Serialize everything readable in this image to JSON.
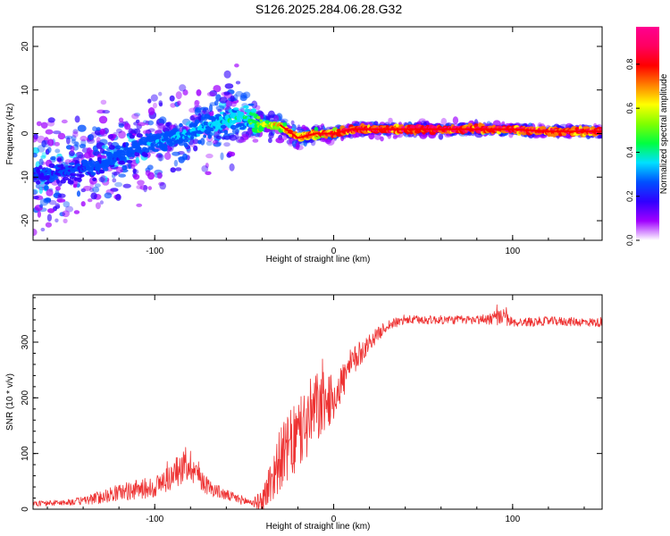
{
  "title": "S126.2025.284.06.28.G32",
  "chart_data": [
    {
      "type": "heatmap",
      "xlabel": "Height of straight line (km)",
      "ylabel": "Frequency (Hz)",
      "xlim": [
        -168,
        150
      ],
      "ylim": [
        -24.5,
        24.5
      ],
      "xticks": [
        -100,
        0,
        100
      ],
      "xtick_labels": [
        "-100",
        "0",
        "100"
      ],
      "yticks": [
        -20,
        -10,
        0,
        10,
        20
      ],
      "ytick_labels": [
        "-20",
        "-10",
        "0",
        "10",
        "20"
      ],
      "colorbar": {
        "label": "Normalized spectral amplitude",
        "range": [
          0,
          0.97
        ],
        "ticks": [
          0.0,
          0.2,
          0.4,
          0.6,
          0.8
        ],
        "tick_labels": [
          "0.0",
          "0.2",
          "0.4",
          "0.6",
          "0.8"
        ],
        "colors": [
          "#ffffff",
          "#a000ff",
          "#3000ff",
          "#0050ff",
          "#00e0ff",
          "#00ff40",
          "#80ff00",
          "#ffff00",
          "#ff8000",
          "#ff0000",
          "#ff0060",
          "#ff0090"
        ]
      },
      "ridge": {
        "x": [
          -150,
          -130,
          -110,
          -90,
          -70,
          -50,
          -40,
          -30,
          -20,
          -10,
          0,
          10,
          20,
          50,
          80,
          100,
          120,
          150
        ],
        "frequency": [
          -9,
          -7,
          -3,
          -1,
          2,
          4,
          2,
          2,
          -1,
          0,
          0,
          1,
          1,
          1,
          1,
          1,
          0.5,
          0.5
        ],
        "amplitude": [
          0.25,
          0.28,
          0.3,
          0.32,
          0.35,
          0.4,
          0.6,
          0.7,
          0.8,
          0.85,
          0.85,
          0.95,
          0.95,
          0.97,
          0.97,
          0.95,
          0.9,
          0.9
        ]
      },
      "scatter_spread_hz": {
        "x": [
          -168,
          -120,
          -80,
          -55,
          -40,
          0,
          150
        ],
        "spread": [
          24,
          20,
          18,
          16,
          6,
          3,
          2
        ]
      }
    },
    {
      "type": "line",
      "xlabel": "Height of straight line (km)",
      "ylabel": "SNR (10 * v/v)",
      "xlim": [
        -168,
        150
      ],
      "ylim": [
        0,
        385
      ],
      "xticks": [
        -100,
        0,
        100
      ],
      "xtick_labels": [
        "-100",
        "0",
        "100"
      ],
      "yticks": [
        0,
        100,
        200,
        300
      ],
      "ytick_labels": [
        "0",
        "100",
        "200",
        "300"
      ],
      "series": [
        {
          "name": "SNR",
          "color": "#ee3333",
          "x": [
            -168,
            -150,
            -140,
            -130,
            -120,
            -110,
            -100,
            -90,
            -85,
            -80,
            -75,
            -70,
            -60,
            -50,
            -45,
            -40,
            -35,
            -30,
            -20,
            -10,
            0,
            10,
            20,
            30,
            40,
            60,
            80,
            95,
            100,
            120,
            150
          ],
          "y": [
            10,
            12,
            15,
            22,
            30,
            35,
            40,
            60,
            75,
            80,
            60,
            40,
            25,
            15,
            12,
            15,
            50,
            90,
            130,
            180,
            200,
            260,
            300,
            330,
            340,
            340,
            340,
            345,
            335,
            338,
            335
          ],
          "noise": [
            5,
            5,
            8,
            12,
            15,
            18,
            20,
            25,
            30,
            30,
            25,
            15,
            10,
            8,
            8,
            20,
            45,
            55,
            70,
            70,
            40,
            30,
            15,
            10,
            8,
            8,
            8,
            15,
            8,
            8,
            8
          ]
        }
      ]
    }
  ]
}
